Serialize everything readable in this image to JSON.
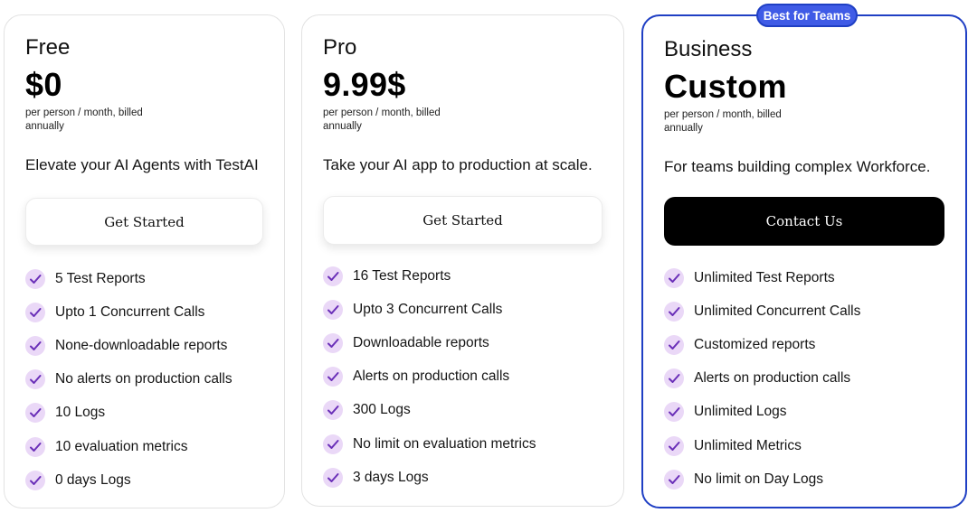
{
  "colors": {
    "accent": "#1f3fc4",
    "badge_bg": "#3f5be6",
    "check_bg": "#ead8f7",
    "check_mark": "#6a2fb8"
  },
  "plans": [
    {
      "name": "Free",
      "price": "$0",
      "price_note": "per person / month, billed annually",
      "tagline": "Elevate your AI Agents with TestAI",
      "cta": "Get Started",
      "features": [
        "5 Test Reports",
        "Upto 1 Concurrent Calls",
        "None-downloadable reports",
        "No alerts on production calls",
        "10 Logs",
        "10 evaluation metrics",
        "0 days Logs"
      ]
    },
    {
      "name": "Pro",
      "price": "9.99$",
      "price_note": "per person / month, billed annually",
      "tagline": "Take your AI app to production at scale.",
      "cta": "Get Started",
      "features": [
        "16 Test Reports",
        "Upto 3 Concurrent Calls",
        "Downloadable reports",
        "Alerts on production calls",
        "300 Logs",
        "No limit on evaluation metrics",
        "3 days Logs"
      ]
    },
    {
      "name": "Business",
      "badge": "Best for Teams",
      "price": "Custom",
      "price_note": "per person / month, billed annually",
      "tagline": "For teams building complex Workforce.",
      "cta": "Contact Us",
      "features": [
        "Unlimited Test Reports",
        "Unlimited Concurrent Calls",
        "Customized reports",
        "Alerts on production calls",
        "Unlimited Logs",
        "Unlimited Metrics",
        "No limit on Day Logs"
      ]
    }
  ]
}
